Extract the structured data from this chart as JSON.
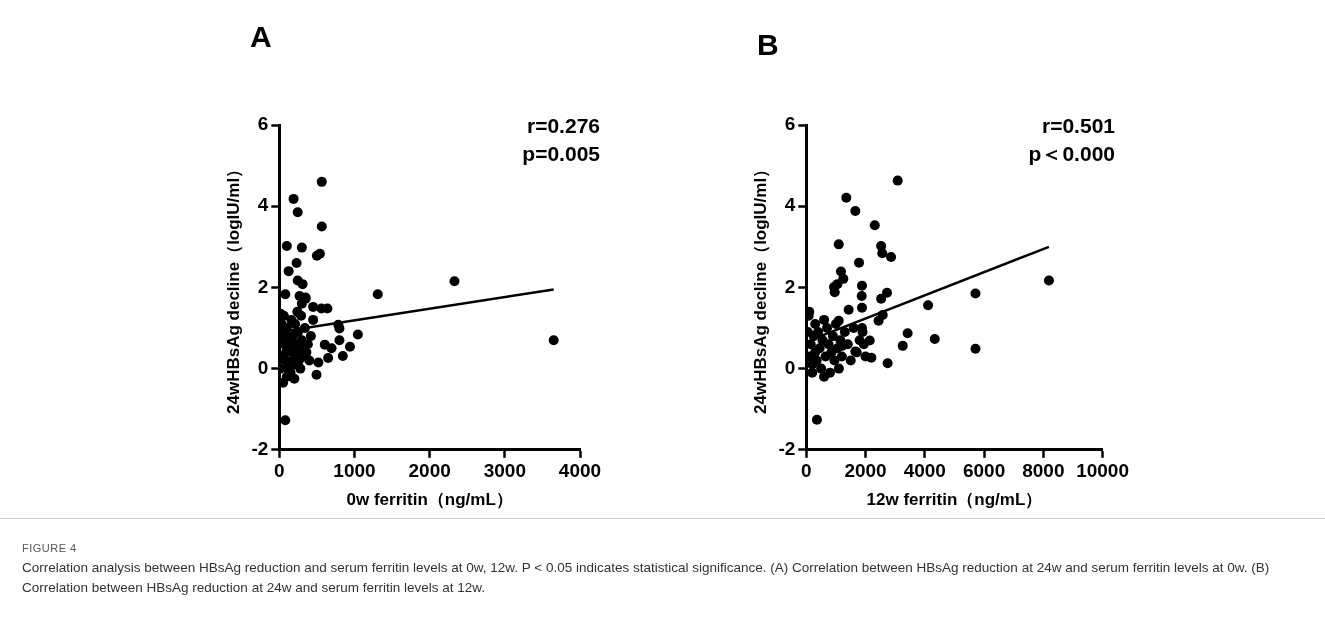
{
  "chart_data": [
    {
      "type": "scatter",
      "xlabel": "0w ferritin（ng/mL）",
      "ylabel": "24wHBsAg decline（logIU/ml）",
      "xlim": [
        0,
        4000
      ],
      "xticks": [
        0,
        1000,
        2000,
        3000,
        4000
      ],
      "ylim": [
        -2,
        6
      ],
      "yticks": [
        -2,
        0,
        2,
        4,
        6
      ],
      "grid": false,
      "legend": false,
      "marker": "circle",
      "annotations": [
        "A",
        "r=0.276",
        "p=0.005",
        "FIGURE 4",
        "Correlation analysis between HBsAg reduction and serum ferritin levels at 0w, 12w. P < 0.05 indicates statistical significance. (A) Correlation between HBsAg reduction at 24w and serum ferritin levels at 0w. (B) Correlation between HBsAg reduction at 24w and serum ferritin levels at 12w."
      ],
      "series": [
        {
          "color": "#000000",
          "x": [
            565,
            190,
            245,
            565,
            100,
            300,
            500,
            540,
            125,
            230,
            245,
            310,
            80,
            1310,
            2330,
            3650,
            270,
            350,
            450,
            560,
            640,
            785,
            800,
            1045,
            800,
            940,
            695,
            605,
            650,
            845,
            495,
            80,
            15,
            30,
            40,
            50,
            60,
            70,
            80,
            90,
            100,
            110,
            120,
            520,
            200,
            150,
            160,
            170,
            180,
            190,
            200,
            210,
            220,
            230,
            240,
            250,
            260,
            270,
            280,
            290,
            300,
            320,
            340,
            360,
            380,
            400,
            420,
            450,
            30,
            60,
            10,
            100,
            150,
            300,
            350
          ],
          "values": [
            4.6,
            4.18,
            3.85,
            3.5,
            3.02,
            2.98,
            2.78,
            2.83,
            2.4,
            2.6,
            2.17,
            2.08,
            1.83,
            1.83,
            2.15,
            0.7,
            1.79,
            1.72,
            1.52,
            1.48,
            1.48,
            1.08,
            0.99,
            0.84,
            0.7,
            0.54,
            0.5,
            0.59,
            0.26,
            0.31,
            -0.15,
            -1.27,
            1.35,
            0.3,
            0.8,
            -0.35,
            0.6,
            0.9,
            0.2,
            0.4,
            1.0,
            0.0,
            0.7,
            0.15,
            -0.25,
            0.5,
            1.2,
            0.2,
            0.8,
            0.4,
            0.1,
            1.1,
            0.6,
            0.3,
            1.4,
            0.9,
            0.2,
            0.5,
            0.0,
            1.3,
            0.7,
            0.3,
            1.0,
            0.4,
            0.6,
            0.2,
            0.8,
            1.2,
            1.1,
            1.3,
            0.0,
            -0.2,
            -0.1,
            1.6,
            1.75
          ]
        },
        {
          "type": "line",
          "color": "#000000",
          "marker": "none",
          "x": [
            0,
            3650
          ],
          "values": [
            0.9,
            1.95
          ]
        }
      ]
    },
    {
      "type": "scatter",
      "xlabel": "12w ferritin（ng/mL）",
      "ylabel": "24wHBsAg decline（logIU/ml）",
      "xlim": [
        0,
        10000
      ],
      "xticks": [
        0,
        2000,
        4000,
        6000,
        8000,
        10000
      ],
      "ylim": [
        -2,
        6
      ],
      "yticks": [
        -2,
        0,
        2,
        4,
        6
      ],
      "grid": false,
      "legend": false,
      "marker": "circle",
      "annotations": [
        "B",
        "r=0.501",
        "p＜0.000"
      ],
      "series": [
        {
          "color": "#000000",
          "x": [
            3085,
            1350,
            1655,
            2310,
            2525,
            2565,
            2860,
            1095,
            1780,
            1170,
            1250,
            1050,
            935,
            960,
            1880,
            1870,
            2725,
            2525,
            4110,
            5710,
            8190,
            3420,
            4335,
            3255,
            5710,
            2745,
            2195,
            1880,
            1430,
            1095,
            2580,
            2440,
            1880,
            2140,
            1940,
            1655,
            1205,
            360,
            100,
            100,
            150,
            200,
            250,
            300,
            350,
            400,
            450,
            500,
            550,
            600,
            650,
            700,
            750,
            800,
            850,
            900,
            950,
            1000,
            1050,
            1100,
            1150,
            1200,
            1300,
            1400,
            1500,
            1600,
            1700,
            1800,
            1900,
            2000,
            50,
            80,
            300,
            600,
            200
          ],
          "values": [
            4.63,
            4.21,
            3.88,
            3.53,
            3.02,
            2.84,
            2.75,
            3.06,
            2.61,
            2.39,
            2.21,
            2.08,
            2.01,
            1.88,
            2.04,
            1.79,
            1.87,
            1.72,
            1.56,
            1.85,
            2.17,
            0.87,
            0.73,
            0.56,
            0.49,
            0.13,
            0.27,
            1.5,
            1.45,
            1.18,
            1.32,
            1.18,
            1.0,
            0.69,
            0.6,
            0.42,
            0.56,
            -1.26,
            1.4,
            0.3,
            0.6,
            0.1,
            0.8,
            0.4,
            0.2,
            0.9,
            0.5,
            0.0,
            0.7,
            -0.2,
            0.3,
            1.0,
            0.6,
            -0.1,
            0.4,
            0.8,
            0.2,
            1.1,
            0.5,
            0.0,
            0.7,
            0.3,
            0.9,
            0.6,
            0.2,
            1.0,
            0.4,
            0.7,
            0.9,
            0.3,
            0.9,
            1.3,
            1.1,
            1.2,
            -0.1
          ]
        },
        {
          "type": "line",
          "color": "#000000",
          "marker": "none",
          "x": [
            200,
            8190
          ],
          "values": [
            0.72,
            3.0
          ]
        }
      ]
    }
  ]
}
